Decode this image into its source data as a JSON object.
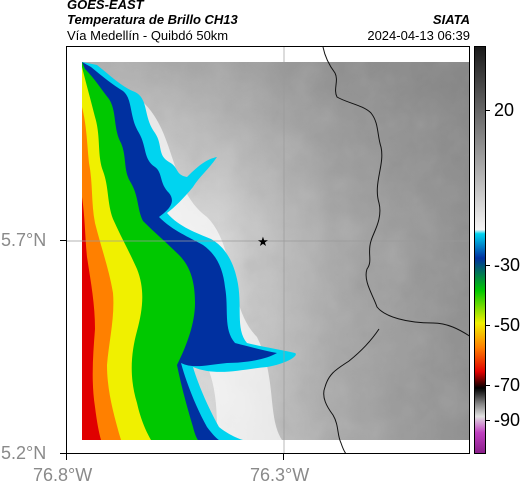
{
  "header": {
    "satellite": "GOES-EAST",
    "product": "Temperatura de Brillo CH13",
    "region": "Vía Medellín - Quibdó 50km",
    "agency": "SIATA",
    "datetime": "2024-04-13 06:39"
  },
  "map": {
    "lat_ticks": [
      "5.7°N",
      "5.2°N"
    ],
    "lon_ticks": [
      "76.8°W",
      "76.3°W"
    ],
    "marker_icon": "star-icon",
    "colorbar_labels": [
      "20",
      "-30",
      "-50",
      "-70",
      "-90"
    ],
    "colorbar_colors": {
      "warm_top": "#1a1a1a",
      "warm_bottom": "#f4f4f4",
      "cyan": "#00d4f0",
      "blue": "#0030a0",
      "green": "#00c800",
      "yellow": "#f0f000",
      "orange": "#ff8000",
      "red": "#e00000",
      "black": "#000000",
      "magenta": "#c040c0"
    }
  }
}
